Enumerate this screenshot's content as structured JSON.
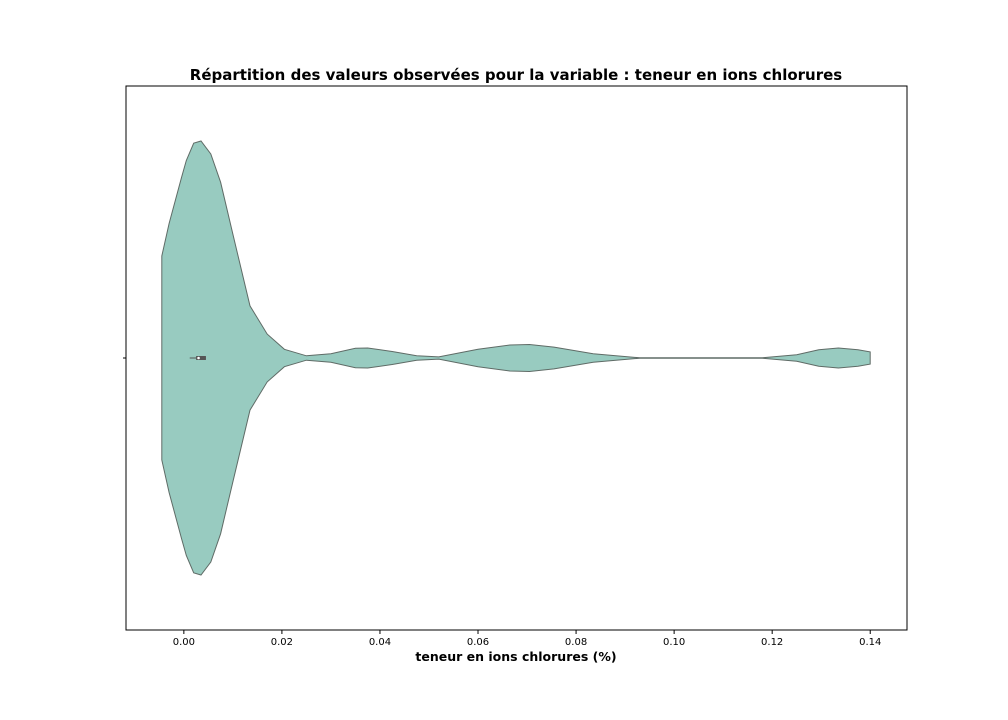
{
  "chart_data": {
    "type": "violin",
    "orientation": "horizontal",
    "title": "Répartition des valeurs observées pour la variable : teneur en ions chlorures",
    "xlabel": "teneur en ions chlorures (%)",
    "ylabel": "",
    "xlim": [
      -0.0118,
      0.1475
    ],
    "xticks": [
      0.0,
      0.02,
      0.04,
      0.06,
      0.08,
      0.1,
      0.12,
      0.14
    ],
    "xtick_labels": [
      "0.00",
      "0.02",
      "0.04",
      "0.06",
      "0.08",
      "0.10",
      "0.12",
      "0.14"
    ],
    "violin_range": [
      -0.0045,
      0.14
    ],
    "density_profile": [
      {
        "x": -0.0045,
        "w": 0.47
      },
      {
        "x": -0.003,
        "w": 0.62
      },
      {
        "x": -0.0005,
        "w": 0.83
      },
      {
        "x": 0.0005,
        "w": 0.91
      },
      {
        "x": 0.002,
        "w": 0.99
      },
      {
        "x": 0.0035,
        "w": 1.0
      },
      {
        "x": 0.0055,
        "w": 0.94
      },
      {
        "x": 0.0075,
        "w": 0.81
      },
      {
        "x": 0.01,
        "w": 0.57
      },
      {
        "x": 0.0135,
        "w": 0.24
      },
      {
        "x": 0.017,
        "w": 0.11
      },
      {
        "x": 0.0205,
        "w": 0.04
      },
      {
        "x": 0.025,
        "w": 0.01
      },
      {
        "x": 0.03,
        "w": 0.02
      },
      {
        "x": 0.035,
        "w": 0.045
      },
      {
        "x": 0.0375,
        "w": 0.046
      },
      {
        "x": 0.0425,
        "w": 0.03
      },
      {
        "x": 0.0475,
        "w": 0.01
      },
      {
        "x": 0.052,
        "w": 0.005
      },
      {
        "x": 0.06,
        "w": 0.04
      },
      {
        "x": 0.0665,
        "w": 0.06
      },
      {
        "x": 0.0705,
        "w": 0.062
      },
      {
        "x": 0.0755,
        "w": 0.05
      },
      {
        "x": 0.0835,
        "w": 0.02
      },
      {
        "x": 0.093,
        "w": 0.001
      },
      {
        "x": 0.118,
        "w": 0.001
      },
      {
        "x": 0.125,
        "w": 0.015
      },
      {
        "x": 0.1295,
        "w": 0.038
      },
      {
        "x": 0.1335,
        "w": 0.046
      },
      {
        "x": 0.1375,
        "w": 0.038
      },
      {
        "x": 0.14,
        "w": 0.028
      }
    ],
    "box": {
      "whisker_low": 0.0012,
      "q1": 0.0025,
      "median": 0.003,
      "q3": 0.0045,
      "whisker_high": 0.0045
    },
    "colors": {
      "fill": "#98cbc0",
      "edge": "#5f6b66",
      "box": "#555555"
    },
    "grid": false,
    "legend": "none"
  }
}
